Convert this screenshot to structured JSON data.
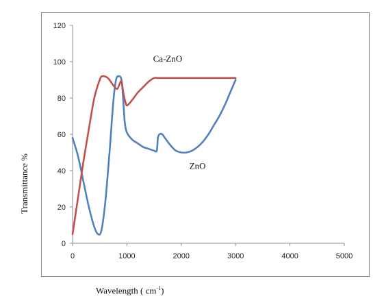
{
  "chart_data": {
    "type": "line",
    "title": "",
    "xlabel": "Wavelength ( cm",
    "xlabel_sup": "-1",
    "xlabel_end": ")",
    "ylabel": "Transmittance %",
    "xlim": [
      0,
      5000
    ],
    "ylim": [
      0,
      120
    ],
    "x_ticks": [
      "0",
      "1000",
      "2000",
      "3000",
      "4000",
      "5000"
    ],
    "y_ticks": [
      "0",
      "20",
      "40",
      "60",
      "80",
      "100",
      "120"
    ],
    "grid": false,
    "legend": "none",
    "series": [
      {
        "name": "Ca-ZnO",
        "color": "#c0504d",
        "points": [
          [
            0,
            5
          ],
          [
            100,
            25
          ],
          [
            200,
            45
          ],
          [
            300,
            63
          ],
          [
            400,
            80
          ],
          [
            500,
            90
          ],
          [
            550,
            92
          ],
          [
            650,
            91
          ],
          [
            750,
            87
          ],
          [
            820,
            85
          ],
          [
            870,
            88
          ],
          [
            900,
            89
          ],
          [
            940,
            82
          ],
          [
            980,
            77
          ],
          [
            1010,
            76
          ],
          [
            1100,
            79
          ],
          [
            1200,
            83
          ],
          [
            1300,
            86
          ],
          [
            1400,
            89
          ],
          [
            1500,
            91
          ],
          [
            1600,
            91
          ],
          [
            2000,
            91
          ],
          [
            2500,
            91
          ],
          [
            3000,
            91
          ]
        ],
        "annotation": {
          "text": "Ca-ZnO",
          "x": 1750,
          "y": 100
        }
      },
      {
        "name": "ZnO",
        "color": "#4f81bd",
        "points": [
          [
            0,
            58
          ],
          [
            100,
            48
          ],
          [
            200,
            34
          ],
          [
            300,
            20
          ],
          [
            400,
            9
          ],
          [
            470,
            5
          ],
          [
            530,
            7
          ],
          [
            600,
            22
          ],
          [
            680,
            50
          ],
          [
            750,
            78
          ],
          [
            800,
            90
          ],
          [
            850,
            92
          ],
          [
            900,
            90
          ],
          [
            930,
            80
          ],
          [
            960,
            67
          ],
          [
            1000,
            61
          ],
          [
            1100,
            57
          ],
          [
            1200,
            55
          ],
          [
            1300,
            53
          ],
          [
            1400,
            52
          ],
          [
            1500,
            51
          ],
          [
            1550,
            51
          ],
          [
            1570,
            58
          ],
          [
            1600,
            60
          ],
          [
            1650,
            60
          ],
          [
            1700,
            58
          ],
          [
            1800,
            54
          ],
          [
            1900,
            51
          ],
          [
            2000,
            50
          ],
          [
            2100,
            50
          ],
          [
            2200,
            51
          ],
          [
            2300,
            53
          ],
          [
            2400,
            56
          ],
          [
            2500,
            60
          ],
          [
            2600,
            65
          ],
          [
            2700,
            70
          ],
          [
            2800,
            76
          ],
          [
            2900,
            83
          ],
          [
            3000,
            90
          ]
        ],
        "annotation": {
          "text": "ZnO",
          "x": 2300,
          "y": 41
        }
      }
    ]
  }
}
